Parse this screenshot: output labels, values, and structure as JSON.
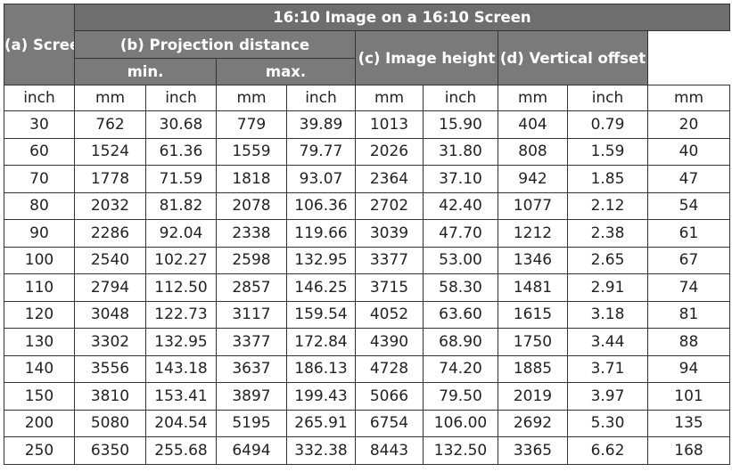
{
  "header": {
    "title": "16:10 Image on a 16:10 Screen",
    "screen_size": "(a) Screen Size",
    "projection_distance": "(b) Projection distance",
    "min": "min.",
    "max": "max.",
    "image_height": "(c) Image height",
    "vertical_offset": "(d) Vertical offset"
  },
  "units": [
    "inch",
    "mm",
    "inch",
    "mm",
    "inch",
    "mm",
    "inch",
    "mm",
    "inch",
    "mm"
  ],
  "rows": [
    [
      "30",
      "762",
      "30.68",
      "779",
      "39.89",
      "1013",
      "15.90",
      "404",
      "0.79",
      "20"
    ],
    [
      "60",
      "1524",
      "61.36",
      "1559",
      "79.77",
      "2026",
      "31.80",
      "808",
      "1.59",
      "40"
    ],
    [
      "70",
      "1778",
      "71.59",
      "1818",
      "93.07",
      "2364",
      "37.10",
      "942",
      "1.85",
      "47"
    ],
    [
      "80",
      "2032",
      "81.82",
      "2078",
      "106.36",
      "2702",
      "42.40",
      "1077",
      "2.12",
      "54"
    ],
    [
      "90",
      "2286",
      "92.04",
      "2338",
      "119.66",
      "3039",
      "47.70",
      "1212",
      "2.38",
      "61"
    ],
    [
      "100",
      "2540",
      "102.27",
      "2598",
      "132.95",
      "3377",
      "53.00",
      "1346",
      "2.65",
      "67"
    ],
    [
      "110",
      "2794",
      "112.50",
      "2857",
      "146.25",
      "3715",
      "58.30",
      "1481",
      "2.91",
      "74"
    ],
    [
      "120",
      "3048",
      "122.73",
      "3117",
      "159.54",
      "4052",
      "63.60",
      "1615",
      "3.18",
      "81"
    ],
    [
      "130",
      "3302",
      "132.95",
      "3377",
      "172.84",
      "4390",
      "68.90",
      "1750",
      "3.44",
      "88"
    ],
    [
      "140",
      "3556",
      "143.18",
      "3637",
      "186.13",
      "4728",
      "74.20",
      "1885",
      "3.71",
      "94"
    ],
    [
      "150",
      "3810",
      "153.41",
      "3897",
      "199.43",
      "5066",
      "79.50",
      "2019",
      "3.97",
      "101"
    ],
    [
      "200",
      "5080",
      "204.54",
      "5195",
      "265.91",
      "6754",
      "106.00",
      "2692",
      "5.30",
      "135"
    ],
    [
      "250",
      "6350",
      "255.68",
      "6494",
      "332.38",
      "8443",
      "132.50",
      "3365",
      "6.62",
      "168"
    ]
  ]
}
